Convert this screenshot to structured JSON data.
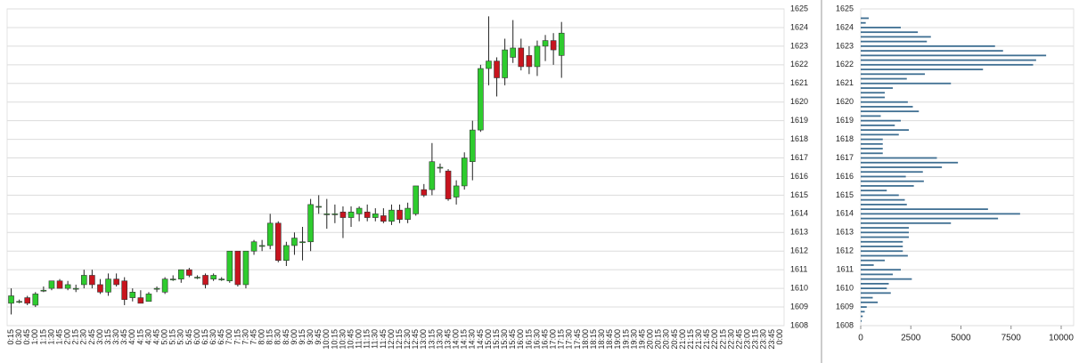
{
  "chart_data": [
    {
      "type": "candlestick",
      "categories": [
        "0:15",
        "0:30",
        "0:45",
        "1:00",
        "1:15",
        "1:30",
        "1:45",
        "2:00",
        "2:15",
        "2:30",
        "2:45",
        "3:00",
        "3:15",
        "3:30",
        "3:45",
        "4:00",
        "4:15",
        "4:30",
        "4:45",
        "5:00",
        "5:15",
        "5:30",
        "5:45",
        "6:00",
        "6:15",
        "6:30",
        "6:45",
        "7:00",
        "7:15",
        "7:30",
        "7:45",
        "8:00",
        "8:15",
        "8:30",
        "8:45",
        "9:00",
        "9:15",
        "9:30",
        "9:45",
        "10:00",
        "10:15",
        "10:30",
        "10:45",
        "11:00",
        "11:15",
        "11:30",
        "11:45",
        "12:00",
        "12:15",
        "12:30",
        "12:45",
        "13:00",
        "13:15",
        "13:30",
        "13:45",
        "14:00",
        "14:15",
        "14:30",
        "14:45",
        "15:00",
        "15:15",
        "15:30",
        "15:45",
        "16:00",
        "16:15",
        "16:30",
        "16:45",
        "17:00",
        "17:15",
        "17:30",
        "17:45",
        "18:00",
        "18:15",
        "18:30",
        "18:45",
        "19:00",
        "19:15",
        "19:30",
        "19:45",
        "20:00",
        "20:15",
        "20:30",
        "20:45",
        "21:00",
        "21:15",
        "21:30",
        "21:45",
        "22:00",
        "22:15",
        "22:30",
        "22:45",
        "23:00",
        "23:15",
        "23:30",
        "23:45",
        "0:00"
      ],
      "open": [
        1609.2,
        1609.3,
        1609.5,
        1609.1,
        1609.9,
        1610.0,
        1610.4,
        1610.0,
        1610.0,
        1610.2,
        1610.7,
        1610.2,
        1609.8,
        1610.5,
        1610.4,
        1609.5,
        1609.5,
        1609.3,
        1610.0,
        1609.8,
        1610.5,
        1610.5,
        1611.0,
        1610.6,
        1610.7,
        1610.5,
        1610.5,
        1610.4,
        1612.0,
        1610.2,
        1612.0,
        1612.3,
        1612.3,
        1613.5,
        1611.5,
        1612.3,
        1612.5,
        1612.5,
        1614.4,
        1614.0,
        1614.0,
        1614.1,
        1613.8,
        1614.0,
        1614.1,
        1613.8,
        1613.9,
        1613.6,
        1614.2,
        1613.7,
        1614.0,
        1615.3,
        1615.3,
        1616.5,
        1616.3,
        1614.9,
        1615.5,
        1616.8,
        1618.5,
        1621.8,
        1622.2,
        1621.3,
        1622.4,
        1622.9,
        1622.5,
        1621.9,
        1623.0,
        1623.3,
        1622.5,
        null,
        null,
        null,
        null,
        null,
        null,
        null,
        null,
        null,
        null,
        null,
        null,
        null,
        null,
        null,
        null,
        null,
        null,
        null,
        null,
        null,
        null,
        null,
        null,
        null,
        null,
        null
      ],
      "high": [
        1610.0,
        1609.4,
        1609.6,
        1609.8,
        1610.1,
        1610.4,
        1610.5,
        1610.4,
        1610.2,
        1611.0,
        1611.0,
        1610.5,
        1610.8,
        1610.8,
        1610.6,
        1610.0,
        1609.9,
        1609.8,
        1610.1,
        1610.6,
        1610.7,
        1611.0,
        1611.1,
        1610.7,
        1610.8,
        1610.8,
        1610.6,
        1612.0,
        1612.0,
        1612.0,
        1612.6,
        1612.6,
        1614.0,
        1613.6,
        1612.5,
        1613.0,
        1613.3,
        1614.8,
        1615.0,
        1614.8,
        1614.5,
        1614.4,
        1614.4,
        1614.4,
        1614.5,
        1614.3,
        1614.3,
        1614.5,
        1614.5,
        1614.6,
        1615.5,
        1615.6,
        1617.8,
        1616.7,
        1616.4,
        1615.8,
        1617.3,
        1619.0,
        1622.0,
        1624.6,
        1622.4,
        1623.4,
        1624.4,
        1623.4,
        1623.0,
        1623.3,
        1623.6,
        1623.7,
        1624.3,
        null,
        null,
        null,
        null,
        null,
        null,
        null,
        null,
        null,
        null,
        null,
        null,
        null,
        null,
        null,
        null,
        null,
        null,
        null,
        null,
        null,
        null,
        null,
        null,
        null,
        null,
        null
      ],
      "low": [
        1608.6,
        1609.2,
        1609.1,
        1609.0,
        1609.8,
        1609.9,
        1610.0,
        1609.9,
        1609.8,
        1610.0,
        1610.0,
        1609.7,
        1609.6,
        1610.1,
        1609.1,
        1609.3,
        1609.2,
        1609.3,
        1609.8,
        1609.7,
        1610.4,
        1610.3,
        1610.6,
        1610.5,
        1610.0,
        1610.4,
        1610.4,
        1610.3,
        1610.1,
        1610.0,
        1611.8,
        1612.0,
        1612.1,
        1611.4,
        1611.2,
        1611.8,
        1611.5,
        1612.0,
        1614.0,
        1613.2,
        1613.5,
        1612.7,
        1613.3,
        1613.6,
        1613.6,
        1613.6,
        1613.5,
        1613.4,
        1613.5,
        1613.5,
        1613.9,
        1614.9,
        1615.0,
        1616.2,
        1614.7,
        1614.5,
        1615.3,
        1615.8,
        1618.4,
        1620.9,
        1620.3,
        1620.9,
        1622.1,
        1621.7,
        1621.5,
        1621.4,
        1622.2,
        1622.0,
        1621.3,
        null,
        null,
        null,
        null,
        null,
        null,
        null,
        null,
        null,
        null,
        null,
        null,
        null,
        null,
        null,
        null,
        null,
        null,
        null,
        null,
        null,
        null,
        null,
        null,
        null,
        null,
        null
      ],
      "close": [
        1609.6,
        1609.3,
        1609.2,
        1609.7,
        1609.9,
        1610.4,
        1610.0,
        1610.2,
        1610.0,
        1610.7,
        1610.2,
        1609.8,
        1610.5,
        1610.2,
        1609.4,
        1609.8,
        1609.2,
        1609.7,
        1610.0,
        1610.5,
        1610.5,
        1611.0,
        1610.7,
        1610.6,
        1610.2,
        1610.7,
        1610.5,
        1612.0,
        1610.2,
        1612.0,
        1612.5,
        1612.3,
        1613.5,
        1611.5,
        1612.3,
        1612.7,
        1612.5,
        1614.5,
        1614.4,
        1614.0,
        1614.0,
        1613.8,
        1614.1,
        1614.3,
        1613.8,
        1614.0,
        1613.6,
        1614.2,
        1613.7,
        1614.3,
        1615.5,
        1615.0,
        1616.8,
        1616.5,
        1614.8,
        1615.5,
        1617.0,
        1618.5,
        1621.8,
        1622.2,
        1621.3,
        1622.8,
        1622.9,
        1621.9,
        1621.9,
        1623.0,
        1623.3,
        1622.8,
        1623.7,
        null,
        null,
        null,
        null,
        null,
        null,
        null,
        null,
        null,
        null,
        null,
        null,
        null,
        null,
        null,
        null,
        null,
        null,
        null,
        null,
        null,
        null,
        null,
        null,
        null,
        null,
        null
      ],
      "up_color": "#2ecc2e",
      "down_color": "#c8141e",
      "ylim": [
        1608,
        1625
      ],
      "yticks": [
        1608,
        1609,
        1610,
        1611,
        1612,
        1613,
        1614,
        1615,
        1616,
        1617,
        1618,
        1619,
        1620,
        1621,
        1622,
        1623,
        1624,
        1625
      ],
      "grid": true
    },
    {
      "type": "hbar",
      "prices": [
        1624.5,
        1624.25,
        1624,
        1623.75,
        1623.5,
        1623.25,
        1623,
        1622.75,
        1622.5,
        1622.25,
        1622,
        1621.75,
        1621.5,
        1621.25,
        1621,
        1620.75,
        1620.5,
        1620.25,
        1620,
        1619.75,
        1619.5,
        1619.25,
        1619,
        1618.75,
        1618.5,
        1618.25,
        1618,
        1617.75,
        1617.5,
        1617.25,
        1617,
        1616.75,
        1616.5,
        1616.25,
        1616,
        1615.75,
        1615.5,
        1615.25,
        1615,
        1614.75,
        1614.5,
        1614.25,
        1614,
        1613.75,
        1613.5,
        1613.25,
        1613,
        1612.75,
        1612.5,
        1612.25,
        1612,
        1611.75,
        1611.5,
        1611.25,
        1611,
        1610.75,
        1610.5,
        1610.25,
        1610,
        1609.75,
        1609.5,
        1609.25,
        1609,
        1608.75,
        1608.5,
        1608.25
      ],
      "values": [
        400,
        250,
        2000,
        2850,
        3500,
        3300,
        6700,
        7100,
        9250,
        8750,
        8600,
        6100,
        3200,
        2300,
        4500,
        1600,
        1200,
        1200,
        2350,
        2600,
        2900,
        1000,
        2000,
        1700,
        2400,
        1900,
        1100,
        1100,
        1100,
        1100,
        3800,
        4850,
        4050,
        3100,
        2250,
        3150,
        2650,
        1300,
        1900,
        2200,
        2300,
        6350,
        7950,
        6850,
        4500,
        2400,
        2400,
        2400,
        2100,
        2100,
        2100,
        2350,
        1200,
        650,
        2000,
        1600,
        2550,
        1400,
        1300,
        1500,
        600,
        850,
        300,
        200,
        100,
        50
      ],
      "color": "#3f6f92",
      "ylim": [
        1608,
        1625
      ],
      "yticks": [
        1608,
        1609,
        1610,
        1611,
        1612,
        1613,
        1614,
        1615,
        1616,
        1617,
        1618,
        1619,
        1620,
        1621,
        1622,
        1623,
        1624,
        1625
      ],
      "xlim": [
        0,
        10000
      ],
      "xticks": [
        0,
        2500,
        5000,
        7500,
        10000
      ],
      "grid": true
    }
  ]
}
